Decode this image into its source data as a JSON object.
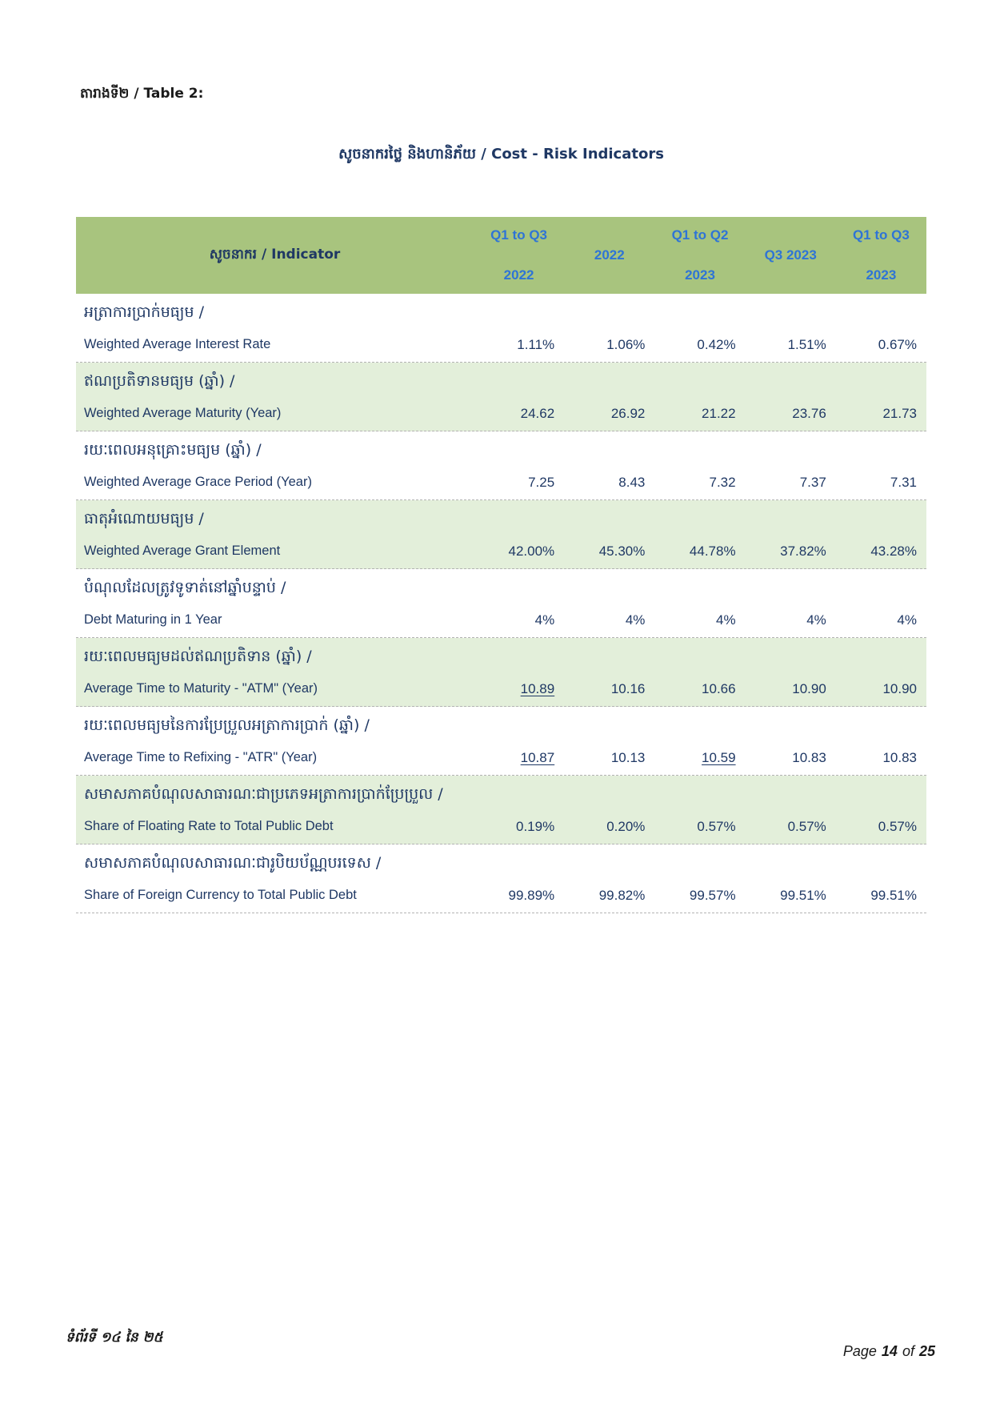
{
  "page": {
    "table_label": "តារាងទី២ / Table 2:",
    "title": "សូចនាករថ្លៃ និងហានិភ័យ / Cost - Risk Indicators",
    "footer_left": "ទំព័រទី ១៤ នៃ ២៥",
    "footer_right": {
      "page_word": "Page",
      "page_number": "14",
      "of_word": "of",
      "total_pages": "25"
    }
  },
  "colors": {
    "header_green": "#A8C47E",
    "stripe_green": "#E3EFDA",
    "header_blue": "#2E74D6",
    "text_navy": "#1F3864"
  },
  "table": {
    "indicator_header": "សូចនាករ / Indicator",
    "col_headers": [
      {
        "line1": "Q1 to Q3",
        "line2": "2022"
      },
      {
        "line1": "2022",
        "line2": ""
      },
      {
        "line1": "Q1 to Q2",
        "line2": "2023"
      },
      {
        "line1": "Q3 2023",
        "line2": ""
      },
      {
        "line1": "Q1 to Q3",
        "line2": "2023"
      }
    ],
    "rows": [
      {
        "km": "អត្រាការប្រាក់មធ្យម /",
        "en": "Weighted Average Interest Rate",
        "shaded": false,
        "values": [
          {
            "text": "1.11%",
            "underlined": false
          },
          {
            "text": "1.06%",
            "underlined": false
          },
          {
            "text": "0.42%",
            "underlined": false
          },
          {
            "text": "1.51%",
            "underlined": false
          },
          {
            "text": "0.67%",
            "underlined": false
          }
        ]
      },
      {
        "km": "ឥណប្រតិទានមធ្យម (ឆ្នាំ) /",
        "en": "Weighted Average Maturity (Year)",
        "shaded": true,
        "values": [
          {
            "text": "24.62",
            "underlined": false
          },
          {
            "text": "26.92",
            "underlined": false
          },
          {
            "text": "21.22",
            "underlined": false
          },
          {
            "text": "23.76",
            "underlined": false
          },
          {
            "text": "21.73",
            "underlined": false
          }
        ]
      },
      {
        "km": "រយៈពេលអនុគ្រោះមធ្យម (ឆ្នាំ) /",
        "en": "Weighted Average Grace  Period (Year)",
        "shaded": false,
        "values": [
          {
            "text": "7.25",
            "underlined": false
          },
          {
            "text": "8.43",
            "underlined": false
          },
          {
            "text": "7.32",
            "underlined": false
          },
          {
            "text": "7.37",
            "underlined": false
          },
          {
            "text": "7.31",
            "underlined": false
          }
        ]
      },
      {
        "km": "ធាតុអំណោយមធ្យម /",
        "en": "Weighted Average Grant Element",
        "shaded": true,
        "values": [
          {
            "text": "42.00%",
            "underlined": false
          },
          {
            "text": "45.30%",
            "underlined": false
          },
          {
            "text": "44.78%",
            "underlined": false
          },
          {
            "text": "37.82%",
            "underlined": false
          },
          {
            "text": "43.28%",
            "underlined": false
          }
        ]
      },
      {
        "km": "បំណុលដែលត្រូវទូទាត់នៅឆ្នាំបន្ទាប់ /",
        "en": "Debt Maturing in 1 Year",
        "shaded": false,
        "values": [
          {
            "text": "4%",
            "underlined": false
          },
          {
            "text": "4%",
            "underlined": false
          },
          {
            "text": "4%",
            "underlined": false
          },
          {
            "text": "4%",
            "underlined": false
          },
          {
            "text": "4%",
            "underlined": false
          }
        ]
      },
      {
        "km": "រយៈពេលមធ្យមដល់ឥណប្រតិទាន (ឆ្នាំ) /",
        "en": "Average Time to Maturity - \"ATM\" (Year)",
        "shaded": true,
        "values": [
          {
            "text": "10.89",
            "underlined": true
          },
          {
            "text": "10.16",
            "underlined": false
          },
          {
            "text": "10.66",
            "underlined": false
          },
          {
            "text": "10.90",
            "underlined": false
          },
          {
            "text": "10.90",
            "underlined": false
          }
        ]
      },
      {
        "km": "រយៈពេលមធ្យមនៃការប្រែប្រួលអត្រាការប្រាក់ (ឆ្នាំ) /",
        "en": "Average Time to Refixing - \"ATR\" (Year)",
        "shaded": false,
        "values": [
          {
            "text": "10.87",
            "underlined": true
          },
          {
            "text": "10.13",
            "underlined": false
          },
          {
            "text": "10.59",
            "underlined": true
          },
          {
            "text": "10.83",
            "underlined": false
          },
          {
            "text": "10.83",
            "underlined": false
          }
        ]
      },
      {
        "km": "សមាសភាគបំណុលសាធារណៈជាប្រភេទអត្រាការប្រាក់ប្រែប្រួល /",
        "en": "Share of Floating Rate to Total Public Debt",
        "shaded": true,
        "values": [
          {
            "text": "0.19%",
            "underlined": false
          },
          {
            "text": "0.20%",
            "underlined": false
          },
          {
            "text": "0.57%",
            "underlined": false
          },
          {
            "text": "0.57%",
            "underlined": false
          },
          {
            "text": "0.57%",
            "underlined": false
          }
        ]
      },
      {
        "km": "សមាសភាគបំណុលសាធារណៈជារូបិយប័ណ្ណបរទេស /",
        "en": "Share of Foreign Currency to Total Public Debt",
        "shaded": false,
        "values": [
          {
            "text": "99.89%",
            "underlined": false
          },
          {
            "text": "99.82%",
            "underlined": false
          },
          {
            "text": "99.57%",
            "underlined": false
          },
          {
            "text": "99.51%",
            "underlined": false
          },
          {
            "text": "99.51%",
            "underlined": false
          }
        ]
      }
    ]
  }
}
